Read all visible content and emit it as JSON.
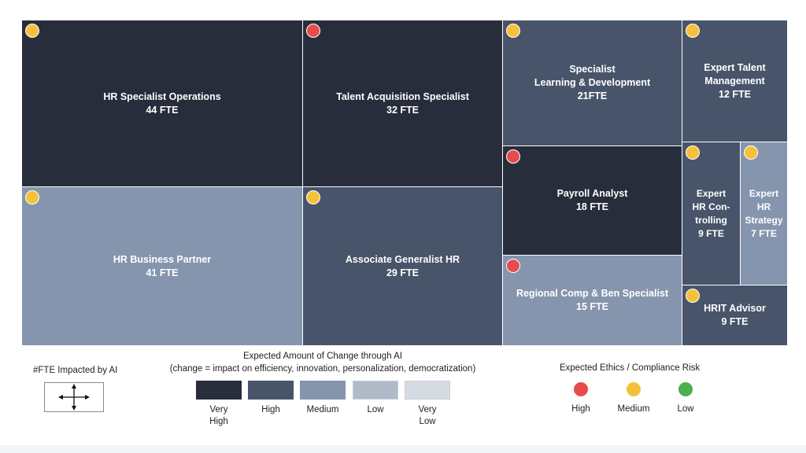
{
  "chart_data": {
    "type": "treemap",
    "units": "FTE",
    "items": [
      {
        "label": "HR Specialist Operations",
        "value_text": "44 FTE",
        "fte": 44,
        "change_level": "Very High",
        "risk": "Medium"
      },
      {
        "label": "Talent Acquisition Specialist",
        "value_text": "32 FTE",
        "fte": 32,
        "change_level": "Very High",
        "risk": "High"
      },
      {
        "label": "HR Business Partner",
        "value_text": "41 FTE",
        "fte": 41,
        "change_level": "Medium",
        "risk": "Medium"
      },
      {
        "label": "Associate Generalist HR",
        "value_text": "29 FTE",
        "fte": 29,
        "change_level": "High",
        "risk": "Medium"
      },
      {
        "label": "Specialist\nLearning & Development",
        "value_text": "21FTE",
        "fte": 21,
        "change_level": "High",
        "risk": "Medium"
      },
      {
        "label": "Payroll Analyst",
        "value_text": "18 FTE",
        "fte": 18,
        "change_level": "Very High",
        "risk": "High"
      },
      {
        "label": "Regional Comp & Ben Specialist",
        "value_text": "15 FTE",
        "fte": 15,
        "change_level": "Medium",
        "risk": "High"
      },
      {
        "label": "Expert Talent\nManagement",
        "value_text": "12 FTE",
        "fte": 12,
        "change_level": "High",
        "risk": "Medium"
      },
      {
        "label": "Expert\nHR Con-\ntrolling",
        "value_text": "9 FTE",
        "fte": 9,
        "change_level": "High",
        "risk": "Medium"
      },
      {
        "label": "Expert\nHR\nStrategy",
        "value_text": "7 FTE",
        "fte": 7,
        "change_level": "Medium",
        "risk": "Medium"
      },
      {
        "label": "HRIT Advisor",
        "value_text": "9 FTE",
        "fte": 9,
        "change_level": "High",
        "risk": "Medium"
      }
    ]
  },
  "legend": {
    "fte_title": "#FTE Impacted by AI",
    "change_title": "Expected Amount of Change through AI",
    "change_subtitle": "(change = impact on efficiency, innovation, personalization, democratization)",
    "change_levels": [
      {
        "name": "Very High",
        "label": "Very\nHigh",
        "color": "#272d3b"
      },
      {
        "name": "High",
        "label": "High",
        "color": "#485469"
      },
      {
        "name": "Medium",
        "label": "Medium",
        "color": "#8595ae"
      },
      {
        "name": "Low",
        "label": "Low",
        "color": "#b0bac9"
      },
      {
        "name": "Very Low",
        "label": "Very\nLow",
        "color": "#d6dbe3"
      }
    ],
    "risk_title": "Expected Ethics / Compliance Risk",
    "risk_levels": [
      {
        "name": "High",
        "label": "High",
        "color": "#e74c4c"
      },
      {
        "name": "Medium",
        "label": "Medium",
        "color": "#f6c13a"
      },
      {
        "name": "Low",
        "label": "Low",
        "color": "#4caf50"
      }
    ]
  }
}
